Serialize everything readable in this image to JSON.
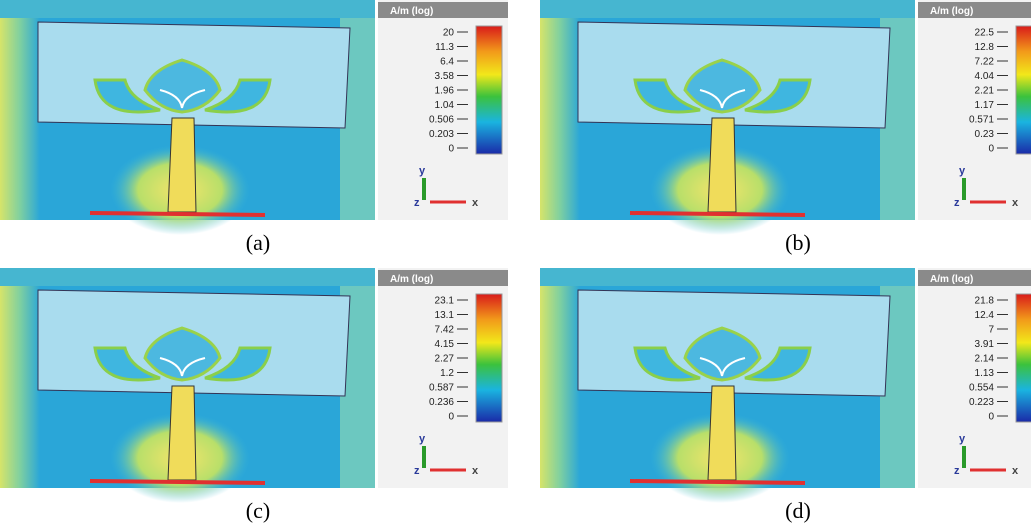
{
  "panels": [
    {
      "caption": "(a)",
      "colorbar": {
        "title": "A/m (log)",
        "ticks": [
          "20",
          "11.3",
          "6.4",
          "3.58",
          "1.96",
          "1.04",
          "0.506",
          "0.203",
          "0"
        ]
      },
      "axes": {
        "y": "y",
        "z": "z",
        "x": "x"
      }
    },
    {
      "caption": "(b)",
      "colorbar": {
        "title": "A/m (log)",
        "ticks": [
          "22.5",
          "12.8",
          "7.22",
          "4.04",
          "2.21",
          "1.17",
          "0.571",
          "0.23",
          "0"
        ]
      },
      "axes": {
        "y": "y",
        "z": "z",
        "x": "x"
      }
    },
    {
      "caption": "(c)",
      "colorbar": {
        "title": "A/m (log)",
        "ticks": [
          "23.1",
          "13.1",
          "7.42",
          "4.15",
          "2.27",
          "1.2",
          "0.587",
          "0.236",
          "0"
        ]
      },
      "axes": {
        "y": "y",
        "z": "z",
        "x": "x"
      }
    },
    {
      "caption": "(d)",
      "colorbar": {
        "title": "A/m (log)",
        "ticks": [
          "21.8",
          "12.4",
          "7",
          "3.91",
          "2.14",
          "1.13",
          "0.554",
          "0.223",
          "0"
        ]
      },
      "axes": {
        "y": "y",
        "z": "z",
        "x": "x"
      }
    }
  ]
}
